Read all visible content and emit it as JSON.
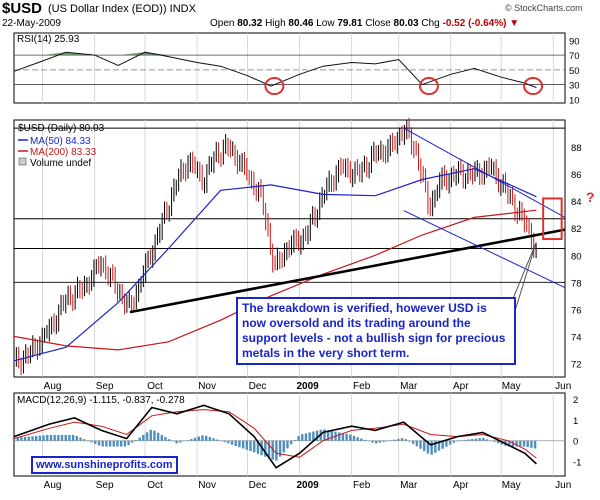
{
  "header": {
    "symbol": "$USD",
    "name": "(US Dollar Index (EOD))",
    "exchange": "INDX",
    "date": "22-May-2009",
    "open_label": "Open",
    "open": "80.32",
    "high_label": "High",
    "high": "80.46",
    "low_label": "Low",
    "low": "79.81",
    "close_label": "Close",
    "close": "80.03",
    "chg_label": "Chg",
    "chg": "-0.52 (-0.64%)",
    "brand": "© StockCharts.com"
  },
  "annotation": {
    "text": "The breakdown is verified, however USD is now oversold and its trading around the support levels - not a bullish sign for precious metals in the very short term.",
    "question": "?",
    "website": "www.sunshineprofits.com"
  },
  "colors": {
    "price": "#000000",
    "ma50": "#1a24c8",
    "ma200": "#c81818",
    "highlight": "#e03030",
    "macd_line": "#000000",
    "signal_line": "#c81818",
    "histogram": "#4f8fc0",
    "rsi_fill": "#5a8a5a"
  },
  "chart_data": [
    {
      "type": "line",
      "name": "RSI panel",
      "label": "RSI(14) 25.93",
      "y_ticks": [
        10,
        30,
        50,
        70,
        90
      ],
      "ylim": [
        5,
        100
      ],
      "reference_lines": [
        30,
        50,
        70
      ],
      "x": [
        "2008-07-15",
        "2008-08-01",
        "2008-08-15",
        "2008-09-01",
        "2008-09-15",
        "2008-10-01",
        "2008-10-15",
        "2008-11-01",
        "2008-11-15",
        "2008-12-01",
        "2008-12-15",
        "2009-01-01",
        "2009-01-15",
        "2009-02-01",
        "2009-02-15",
        "2009-03-01",
        "2009-03-15",
        "2009-04-01",
        "2009-04-15",
        "2009-05-01",
        "2009-05-15",
        "2009-05-22"
      ],
      "values": [
        48,
        62,
        74,
        70,
        56,
        74,
        68,
        60,
        55,
        42,
        28,
        44,
        55,
        60,
        58,
        64,
        30,
        44,
        52,
        40,
        32,
        26
      ],
      "circled_dates": [
        "2008-12-17",
        "2009-03-19",
        "2009-05-20"
      ]
    },
    {
      "type": "line",
      "name": "Price panel",
      "labels": {
        "price": "$USD (Daily) 80.03",
        "ma50": "MA(50) 84.33",
        "ma200": "MA(200) 83.33",
        "volume": "Volume undef"
      },
      "y_ticks": [
        72,
        74,
        76,
        78,
        80,
        82,
        84,
        86,
        88
      ],
      "ylim": [
        71,
        90
      ],
      "x_ticks": [
        "Aug",
        "Sep",
        "Oct",
        "Nov",
        "Dec",
        "2009",
        "Feb",
        "Mar",
        "Apr",
        "May",
        "Jun"
      ],
      "xlim": [
        "2008-07-15",
        "2009-06-08"
      ],
      "horizontal_levels": [
        89.4,
        82.7,
        80.5,
        78.0
      ],
      "series": [
        {
          "name": "$USD",
          "x": [
            "2008-07-15",
            "2008-07-25",
            "2008-08-05",
            "2008-08-15",
            "2008-08-25",
            "2008-09-05",
            "2008-09-12",
            "2008-09-22",
            "2008-10-01",
            "2008-10-10",
            "2008-10-20",
            "2008-10-27",
            "2008-11-05",
            "2008-11-12",
            "2008-11-20",
            "2008-12-01",
            "2008-12-10",
            "2008-12-17",
            "2008-12-24",
            "2009-01-05",
            "2009-01-15",
            "2009-01-25",
            "2009-02-05",
            "2009-02-15",
            "2009-02-25",
            "2009-03-04",
            "2009-03-12",
            "2009-03-19",
            "2009-03-26",
            "2009-04-05",
            "2009-04-15",
            "2009-04-25",
            "2009-05-05",
            "2009-05-12",
            "2009-05-18",
            "2009-05-22"
          ],
          "values": [
            72.0,
            72.8,
            74.5,
            76.8,
            77.5,
            79.5,
            78.0,
            76.0,
            79.0,
            82.0,
            85.5,
            87.0,
            85.5,
            87.5,
            88.0,
            86.0,
            84.0,
            79.0,
            80.5,
            81.5,
            84.5,
            86.5,
            86.0,
            87.5,
            88.0,
            89.4,
            87.5,
            83.5,
            85.5,
            86.0,
            86.0,
            86.5,
            84.5,
            83.0,
            81.8,
            80.03
          ]
        },
        {
          "name": "MA(50)",
          "x": [
            "2008-07-15",
            "2008-08-15",
            "2008-09-15",
            "2008-10-15",
            "2008-11-15",
            "2008-12-15",
            "2009-01-15",
            "2009-02-15",
            "2009-03-15",
            "2009-04-15",
            "2009-05-22"
          ],
          "values": [
            72.2,
            73.2,
            76.5,
            80.5,
            84.8,
            85.2,
            84.5,
            84.4,
            85.6,
            86.4,
            84.33
          ]
        },
        {
          "name": "MA(200)",
          "x": [
            "2008-07-15",
            "2008-08-15",
            "2008-09-15",
            "2008-10-15",
            "2008-11-15",
            "2008-12-15",
            "2009-01-15",
            "2009-02-15",
            "2009-03-15",
            "2009-04-15",
            "2009-05-22"
          ],
          "values": [
            74.0,
            73.3,
            73.0,
            73.6,
            75.2,
            77.0,
            78.6,
            80.0,
            81.5,
            82.8,
            83.33
          ]
        },
        {
          "name": "Support trendline",
          "x": [
            "2008-09-22",
            "2009-06-08"
          ],
          "values": [
            75.8,
            81.9
          ]
        },
        {
          "name": "Upper channel line",
          "x": [
            "2009-03-04",
            "2009-06-08"
          ],
          "values": [
            89.4,
            82.8
          ]
        },
        {
          "name": "Lower channel line",
          "x": [
            "2009-03-04",
            "2009-06-08"
          ],
          "values": [
            83.3,
            77.6
          ]
        }
      ],
      "highlight_box": {
        "x": [
          "2009-05-26",
          "2009-06-06"
        ],
        "y": [
          81.2,
          84.2
        ]
      }
    },
    {
      "type": "line",
      "name": "MACD panel",
      "label": "MACD(12,26,9) -1.115, -0.837, -0.278",
      "y_ticks": [
        -1,
        0,
        1,
        2
      ],
      "ylim": [
        -1.7,
        2.3
      ],
      "x_ticks": [
        "Aug",
        "Sep",
        "Oct",
        "Nov",
        "Dec",
        "2009",
        "Feb",
        "Mar",
        "Apr",
        "May",
        "Jun"
      ],
      "series": [
        {
          "name": "MACD",
          "x": [
            "2008-07-15",
            "2008-08-05",
            "2008-08-20",
            "2008-09-05",
            "2008-09-20",
            "2008-10-05",
            "2008-10-20",
            "2008-11-05",
            "2008-11-20",
            "2008-12-05",
            "2008-12-18",
            "2009-01-01",
            "2009-01-15",
            "2009-02-01",
            "2009-02-15",
            "2009-03-04",
            "2009-03-20",
            "2009-04-05",
            "2009-04-20",
            "2009-05-05",
            "2009-05-15",
            "2009-05-22"
          ],
          "values": [
            0.2,
            0.8,
            1.1,
            0.5,
            0.1,
            1.6,
            1.3,
            1.7,
            1.3,
            0.2,
            -1.3,
            -0.6,
            0.4,
            0.7,
            0.5,
            0.9,
            -0.2,
            0.2,
            0.4,
            -0.2,
            -0.6,
            -1.115
          ]
        },
        {
          "name": "Signal",
          "x": [
            "2008-07-15",
            "2008-08-05",
            "2008-08-20",
            "2008-09-05",
            "2008-09-20",
            "2008-10-05",
            "2008-10-20",
            "2008-11-05",
            "2008-11-20",
            "2008-12-05",
            "2008-12-18",
            "2009-01-01",
            "2009-01-15",
            "2009-02-01",
            "2009-02-15",
            "2009-03-04",
            "2009-03-20",
            "2009-04-05",
            "2009-04-20",
            "2009-05-05",
            "2009-05-15",
            "2009-05-22"
          ],
          "values": [
            0.1,
            0.6,
            0.9,
            0.7,
            0.3,
            1.2,
            1.4,
            1.5,
            1.4,
            0.6,
            -0.6,
            -0.8,
            0.0,
            0.5,
            0.6,
            0.8,
            0.3,
            0.2,
            0.3,
            0.0,
            -0.4,
            -0.837
          ]
        }
      ]
    }
  ]
}
